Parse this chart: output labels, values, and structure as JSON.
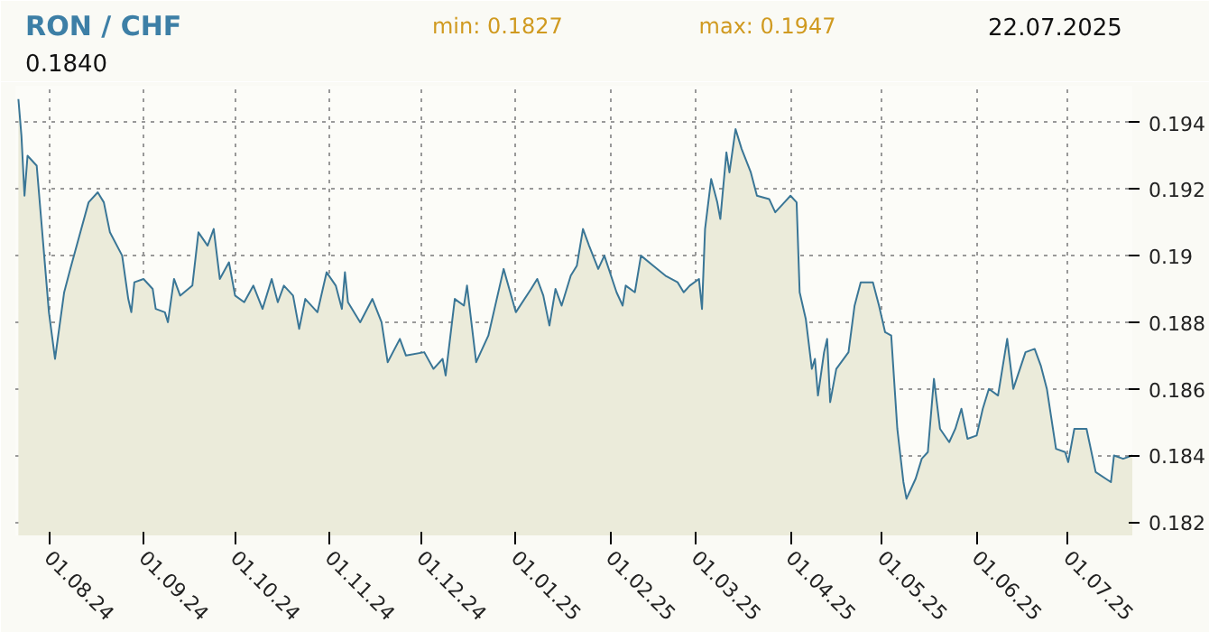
{
  "chart_data": {
    "type": "area",
    "title": "RON / CHF",
    "annotations": [
      "min: 0.1827",
      "max: 0.1947",
      "22.07.2025",
      "0.1840"
    ],
    "x": [
      "2024-07-22",
      "2024-07-23",
      "2024-07-24",
      "2024-07-25",
      "2024-07-28",
      "2024-07-30",
      "2024-08-01",
      "2024-08-03",
      "2024-08-06",
      "2024-08-08",
      "2024-08-11",
      "2024-08-14",
      "2024-08-17",
      "2024-08-19",
      "2024-08-21",
      "2024-08-25",
      "2024-08-27",
      "2024-08-28",
      "2024-08-29",
      "2024-09-01",
      "2024-09-04",
      "2024-09-05",
      "2024-09-08",
      "2024-09-09",
      "2024-09-11",
      "2024-09-13",
      "2024-09-17",
      "2024-09-19",
      "2024-09-22",
      "2024-09-24",
      "2024-09-26",
      "2024-09-29",
      "2024-10-01",
      "2024-10-04",
      "2024-10-07",
      "2024-10-10",
      "2024-10-13",
      "2024-10-15",
      "2024-10-17",
      "2024-10-20",
      "2024-10-22",
      "2024-10-24",
      "2024-10-28",
      "2024-10-31",
      "2024-11-03",
      "2024-11-05",
      "2024-11-06",
      "2024-11-07",
      "2024-11-11",
      "2024-11-15",
      "2024-11-18",
      "2024-11-20",
      "2024-11-24",
      "2024-11-26",
      "2024-12-02",
      "2024-12-05",
      "2024-12-08",
      "2024-12-09",
      "2024-12-12",
      "2024-12-15",
      "2024-12-16",
      "2024-12-19",
      "2024-12-23",
      "2024-12-28",
      "2025-01-01",
      "2025-01-06",
      "2025-01-08",
      "2025-01-10",
      "2025-01-12",
      "2025-01-14",
      "2025-01-16",
      "2025-01-19",
      "2025-01-21",
      "2025-01-23",
      "2025-01-25",
      "2025-01-28",
      "2025-01-30",
      "2025-02-03",
      "2025-02-05",
      "2025-02-06",
      "2025-02-09",
      "2025-02-11",
      "2025-02-15",
      "2025-02-19",
      "2025-02-23",
      "2025-02-25",
      "2025-02-27",
      "2025-03-02",
      "2025-03-03",
      "2025-03-04",
      "2025-03-06",
      "2025-03-08",
      "2025-03-09",
      "2025-03-11",
      "2025-03-12",
      "2025-03-14",
      "2025-03-16",
      "2025-03-19",
      "2025-03-21",
      "2025-03-25",
      "2025-03-27",
      "2025-03-30",
      "2025-04-01",
      "2025-04-03",
      "2025-04-04",
      "2025-04-06",
      "2025-04-08",
      "2025-04-09",
      "2025-04-10",
      "2025-04-12",
      "2025-04-13",
      "2025-04-14",
      "2025-04-16",
      "2025-04-20",
      "2025-04-22",
      "2025-04-24",
      "2025-04-28",
      "2025-04-30",
      "2025-05-02",
      "2025-05-04",
      "2025-05-06",
      "2025-05-08",
      "2025-05-09",
      "2025-05-12",
      "2025-05-14",
      "2025-05-16",
      "2025-05-18",
      "2025-05-20",
      "2025-05-23",
      "2025-05-25",
      "2025-05-27",
      "2025-05-29",
      "2025-06-01",
      "2025-06-03",
      "2025-06-05",
      "2025-06-08",
      "2025-06-11",
      "2025-06-13",
      "2025-06-17",
      "2025-06-20",
      "2025-06-22",
      "2025-06-24",
      "2025-06-27",
      "2025-06-30",
      "2025-07-01",
      "2025-07-03",
      "2025-07-07",
      "2025-07-10",
      "2025-07-15",
      "2025-07-16",
      "2025-07-19",
      "2025-07-22"
    ],
    "series": [
      {
        "color": "#3a7696",
        "values": [
          0.1947,
          0.1936,
          0.1918,
          0.193,
          0.1927,
          0.1905,
          0.1883,
          0.1869,
          0.1889,
          0.1896,
          0.1906,
          0.1916,
          0.1919,
          0.1916,
          0.1907,
          0.19,
          0.1887,
          0.1883,
          0.1892,
          0.1893,
          0.189,
          0.1884,
          0.1883,
          0.188,
          0.1893,
          0.1888,
          0.1891,
          0.1907,
          0.1903,
          0.1908,
          0.1893,
          0.1898,
          0.1888,
          0.1886,
          0.1891,
          0.1884,
          0.1893,
          0.1886,
          0.1891,
          0.1888,
          0.1878,
          0.1887,
          0.1883,
          0.1895,
          0.1891,
          0.1884,
          0.1895,
          0.1886,
          0.188,
          0.1887,
          0.188,
          0.1868,
          0.1875,
          0.187,
          0.1871,
          0.1866,
          0.1869,
          0.1864,
          0.1887,
          0.1885,
          0.1891,
          0.1868,
          0.1876,
          0.1896,
          0.1883,
          0.189,
          0.1893,
          0.1888,
          0.1879,
          0.189,
          0.1885,
          0.1894,
          0.1897,
          0.1908,
          0.1903,
          0.1896,
          0.19,
          0.1889,
          0.1885,
          0.1891,
          0.1889,
          0.19,
          0.1897,
          0.1894,
          0.1892,
          0.1889,
          0.1891,
          0.1893,
          0.1884,
          0.1908,
          0.1923,
          0.1916,
          0.1911,
          0.1931,
          0.1925,
          0.1938,
          0.1932,
          0.1925,
          0.1918,
          0.1917,
          0.1913,
          0.1916,
          0.1918,
          0.1916,
          0.1889,
          0.1881,
          0.1866,
          0.1869,
          0.1858,
          0.1871,
          0.1875,
          0.1856,
          0.1866,
          0.1871,
          0.1885,
          0.1892,
          0.1892,
          0.1885,
          0.1877,
          0.1876,
          0.1848,
          0.1832,
          0.1827,
          0.1833,
          0.1839,
          0.1841,
          0.1863,
          0.1848,
          0.1844,
          0.1848,
          0.1854,
          0.1845,
          0.1846,
          0.1854,
          0.186,
          0.1858,
          0.1875,
          0.186,
          0.1871,
          0.1872,
          0.1867,
          0.186,
          0.1842,
          0.1841,
          0.1838,
          0.1848,
          0.1848,
          0.1835,
          0.1832,
          0.184,
          0.1839,
          0.184
        ]
      }
    ],
    "xlim": [
      "2024-07-21",
      "2025-07-22"
    ],
    "xticks": [
      {
        "value": "2024-08-01",
        "label": "01.08.24"
      },
      {
        "value": "2024-09-01",
        "label": "01.09.24"
      },
      {
        "value": "2024-10-01",
        "label": "01.10.24"
      },
      {
        "value": "2024-11-01",
        "label": "01.11.24"
      },
      {
        "value": "2024-12-01",
        "label": "01.12.24"
      },
      {
        "value": "2025-01-01",
        "label": "01.01.25"
      },
      {
        "value": "2025-02-01",
        "label": "01.02.25"
      },
      {
        "value": "2025-03-01",
        "label": "01.03.25"
      },
      {
        "value": "2025-04-01",
        "label": "01.04.25"
      },
      {
        "value": "2025-05-01",
        "label": "01.05.25"
      },
      {
        "value": "2025-06-01",
        "label": "01.06.25"
      },
      {
        "value": "2025-07-01",
        "label": "01.07.25"
      }
    ],
    "ylim": [
      0.1816,
      0.1951
    ],
    "yticks": [
      0.182,
      0.184,
      0.186,
      0.188,
      0.19,
      0.192,
      0.194
    ],
    "grid": true
  }
}
